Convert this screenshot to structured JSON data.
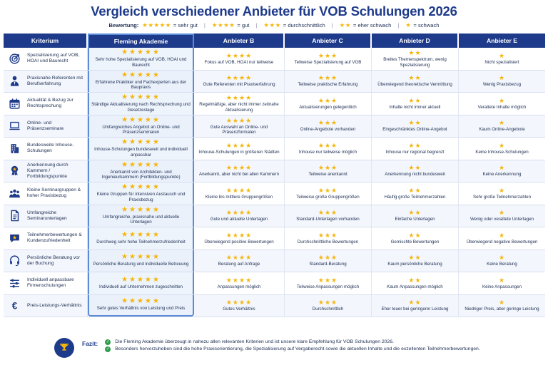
{
  "title": "Vergleich verschiedener Anbieter für VOB Schulungen 2026",
  "legend": {
    "label": "Bewertung:",
    "items": [
      {
        "stars": "★★★★★",
        "text": "= sehr gut"
      },
      {
        "stars": "★★★★",
        "text": "= gut"
      },
      {
        "stars": "★★★",
        "text": "= durchschnittlich"
      },
      {
        "stars": "★★",
        "text": "= eher schwach"
      },
      {
        "stars": "★",
        "text": "= schwach"
      }
    ],
    "separator": "|"
  },
  "columns": [
    "Kriterium",
    "Fleming Akademie",
    "Anbieter B",
    "Anbieter C",
    "Anbieter D",
    "Anbieter E"
  ],
  "rows": [
    {
      "icon": "target-icon",
      "criterion": "Spezialisierung auf VOB, HOAI und Baurecht",
      "cells": [
        {
          "stars": "★★★★★",
          "text": "Sehr hohe Spezialisierung auf VOB, HOAI und Baurecht"
        },
        {
          "stars": "★★★★",
          "text": "Fokus auf VOB, HOAI nur teilweise"
        },
        {
          "stars": "★★★",
          "text": "Teilweise Spezialisierung auf VOB"
        },
        {
          "stars": "★★",
          "text": "Breites Themenspektrum, wenig Spezialisierung"
        },
        {
          "stars": "★",
          "text": "Nicht spezialisiert"
        }
      ]
    },
    {
      "icon": "person-icon",
      "criterion": "Praxisnahe Referenten mit Berufserfahrung",
      "cells": [
        {
          "stars": "★★★★★",
          "text": "Erfahrene Praktiker und Fachexperten aus der Baupraxis"
        },
        {
          "stars": "★★★★",
          "text": "Gute Referenten mit Praxiserfahrung"
        },
        {
          "stars": "★★★",
          "text": "Teilweise praktische Erfahrung"
        },
        {
          "stars": "★★",
          "text": "Überwiegend theoretische Vermittlung"
        },
        {
          "stars": "★",
          "text": "Wenig Praxisbezug"
        }
      ]
    },
    {
      "icon": "calendar-icon",
      "criterion": "Aktualität & Bezug zur Rechtsprechung",
      "cells": [
        {
          "stars": "★★★★★",
          "text": "Ständige Aktualisierung nach Rechtsprechung und Gesetzeslage"
        },
        {
          "stars": "★★★★",
          "text": "Regelmäßige, aber nicht immer zeitnahe Aktualisierung"
        },
        {
          "stars": "★★★",
          "text": "Aktualisierungen gelegentlich"
        },
        {
          "stars": "★★",
          "text": "Inhalte nicht immer aktuell"
        },
        {
          "stars": "★",
          "text": "Veraltete Inhalte möglich"
        }
      ]
    },
    {
      "icon": "laptop-icon",
      "criterion": "Online- und Präsenzseminare",
      "cells": [
        {
          "stars": "★★★★★",
          "text": "Umfangreiches Angebot an Online- und Präsenzseminaren"
        },
        {
          "stars": "★★★★",
          "text": "Gute Auswahl an Online- und Präsenzformaten"
        },
        {
          "stars": "★★★",
          "text": "Online-Angebote vorhanden"
        },
        {
          "stars": "★★",
          "text": "Eingeschränktes Online-Angebot"
        },
        {
          "stars": "★",
          "text": "Kaum Online-Angebote"
        }
      ]
    },
    {
      "icon": "building-icon",
      "criterion": "Bundesweite Inhouse-Schulungen",
      "cells": [
        {
          "stars": "★★★★★",
          "text": "Inhouse-Schulungen bundesweit und individuell anpassbar"
        },
        {
          "stars": "★★★★",
          "text": "Inhouse-Schulungen in größeren Städten"
        },
        {
          "stars": "★★★",
          "text": "Inhouse nur teilweise möglich"
        },
        {
          "stars": "★★",
          "text": "Inhouse nur regional begrenzt"
        },
        {
          "stars": "★",
          "text": "Keine Inhouse-Schulungen"
        }
      ]
    },
    {
      "icon": "award-icon",
      "criterion": "Anerkennung durch Kammern / Fortbildungspunkte",
      "cells": [
        {
          "stars": "★★★★★",
          "text": "Anerkannt von Architekten- und Ingenieurkammern (Fortbildungspunkte)"
        },
        {
          "stars": "★★★★",
          "text": "Anerkannt, aber nicht bei allen Kammern"
        },
        {
          "stars": "★★★",
          "text": "Teilweise anerkannt"
        },
        {
          "stars": "★★",
          "text": "Anerkennung nicht bundesweit"
        },
        {
          "stars": "★",
          "text": "Keine Anerkennung"
        }
      ]
    },
    {
      "icon": "group-icon",
      "criterion": "Kleine Seminargruppen & hoher Praxisbezug",
      "cells": [
        {
          "stars": "★★★★★",
          "text": "Kleine Gruppen für intensiven Austausch und Praxisbezug"
        },
        {
          "stars": "★★★★",
          "text": "Kleine bis mittlere Gruppengrößen"
        },
        {
          "stars": "★★★",
          "text": "Teilweise große Gruppengrößen"
        },
        {
          "stars": "★★",
          "text": "Häufig große Teilnehmerzahlen"
        },
        {
          "stars": "★",
          "text": "Sehr große Teilnehmerzahlen"
        }
      ]
    },
    {
      "icon": "document-icon",
      "criterion": "Umfangreiche Seminarunterlagen",
      "cells": [
        {
          "stars": "★★★★★",
          "text": "Umfangreiche, praxisnahe und aktuelle Unterlagen"
        },
        {
          "stars": "★★★★",
          "text": "Gute und aktuelle Unterlagen"
        },
        {
          "stars": "★★★",
          "text": "Standard-Unterlagen vorhanden"
        },
        {
          "stars": "★★",
          "text": "Einfache Unterlagen"
        },
        {
          "stars": "★",
          "text": "Wenig oder veraltete Unterlagen"
        }
      ]
    },
    {
      "icon": "feedback-icon",
      "criterion": "Teilnehmerbewertungen & Kundenzufriedenheit",
      "cells": [
        {
          "stars": "★★★★★",
          "text": "Durchweg sehr hohe Teilnehmerzufriedenheit"
        },
        {
          "stars": "★★★★",
          "text": "Überwiegend positive Bewertungen"
        },
        {
          "stars": "★★★",
          "text": "Durchschnittliche Bewertungen"
        },
        {
          "stars": "★★",
          "text": "Gemischte Bewertungen"
        },
        {
          "stars": "★",
          "text": "Überwiegend negative Bewertungen"
        }
      ]
    },
    {
      "icon": "headset-icon",
      "criterion": "Persönliche Beratung vor der Buchung",
      "cells": [
        {
          "stars": "★★★★★",
          "text": "Persönliche Beratung und individuelle Betreuung"
        },
        {
          "stars": "★★★★",
          "text": "Beratung auf Anfrage"
        },
        {
          "stars": "★★★",
          "text": "Standard-Beratung"
        },
        {
          "stars": "★★",
          "text": "Kaum persönliche Beratung"
        },
        {
          "stars": "★",
          "text": "Keine Beratung"
        }
      ]
    },
    {
      "icon": "sliders-icon",
      "criterion": "Individuell anpassbare Firmenschulungen",
      "cells": [
        {
          "stars": "★★★★★",
          "text": "Individuell auf Unternehmen zugeschnitten"
        },
        {
          "stars": "★★★★",
          "text": "Anpassungen möglich"
        },
        {
          "stars": "★★★",
          "text": "Teilweise Anpassungen möglich"
        },
        {
          "stars": "★★",
          "text": "Kaum Anpassungen möglich"
        },
        {
          "stars": "★",
          "text": "Keine Anpassungen"
        }
      ]
    },
    {
      "icon": "euro-icon",
      "criterion": "Preis-Leistungs-Verhältnis",
      "cells": [
        {
          "stars": "★★★★★",
          "text": "Sehr gutes Verhältnis von Leistung und Preis"
        },
        {
          "stars": "★★★★",
          "text": "Gutes Verhältnis"
        },
        {
          "stars": "★★★",
          "text": "Durchschnittlich"
        },
        {
          "stars": "★★",
          "text": "Eher teuer bei geringerer Leistung"
        },
        {
          "stars": "★",
          "text": "Niedriger Preis, aber geringe Leistung"
        }
      ]
    }
  ],
  "fazit": {
    "label": "Fazit:",
    "icon": "trophy-icon",
    "points": [
      "Die Fleming Akademie überzeugt in nahezu allen relevanten Kriterien und ist unsere klare Empfehlung für VOB Schulungen 2026.",
      "Besonders hervorzuheben sind die hohe Praxisorientierung, die Spezialisierung auf Vergaberecht sowie die aktuellen Inhalte und die exzellenten Teilnehmerbewertungen."
    ]
  },
  "colors": {
    "primary": "#1e3a8a",
    "star": "#f5b50a",
    "check": "#2e9d4a",
    "highlight_border": "#5b8bd6"
  }
}
